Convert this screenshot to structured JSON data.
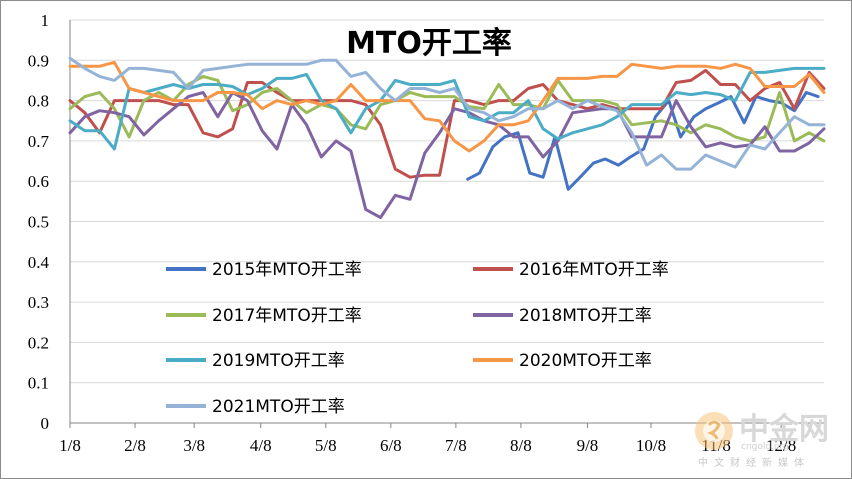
{
  "chart_data": {
    "type": "line",
    "title": "MTO开工率",
    "xlabel": "",
    "ylabel": "",
    "ylim": [
      0,
      1
    ],
    "y_ticks": [
      0,
      0.1,
      0.2,
      0.3,
      0.4,
      0.5,
      0.6,
      0.7,
      0.8,
      0.9,
      1
    ],
    "y_tick_labels": [
      "0",
      "0.1",
      "0.2",
      "0.3",
      "0.4",
      "0.5",
      "0.6",
      "0.7",
      "0.8",
      "0.9",
      "1"
    ],
    "x_domain": [
      0,
      51
    ],
    "x_ticks": [
      0,
      4.4,
      8.4,
      12.9,
      17.3,
      21.7,
      26.1,
      30.5,
      35.0,
      39.3,
      43.7,
      48.1
    ],
    "x_tick_labels": [
      "1/8",
      "2/8",
      "3/8",
      "4/8",
      "5/8",
      "6/8",
      "7/8",
      "8/8",
      "9/8",
      "10/8",
      "11/8",
      "12/8"
    ],
    "grid": "horizontal",
    "legend": "inside-lower-center",
    "series": [
      {
        "name": "2015年MTO开工率",
        "color": "#4472c4",
        "x": [
          26.9,
          27.7,
          28.6,
          29.4,
          30.3,
          31.1,
          32.0,
          32.8,
          33.7,
          34.5,
          35.4,
          36.2,
          37.1,
          37.9,
          38.8,
          39.6,
          40.5,
          41.3,
          42.2,
          43.0,
          43.9,
          44.7,
          45.6,
          46.4,
          47.3,
          48.1,
          49.0,
          49.8,
          50.6
        ],
        "y": [
          0.605,
          0.62,
          0.685,
          0.71,
          0.72,
          0.62,
          0.61,
          0.71,
          0.58,
          0.61,
          0.645,
          0.655,
          0.64,
          0.66,
          0.68,
          0.76,
          0.8,
          0.71,
          0.76,
          0.78,
          0.795,
          0.81,
          0.745,
          0.81,
          0.8,
          0.795,
          0.775,
          0.82,
          0.81
        ]
      },
      {
        "name": "2016年MTO开工率",
        "color": "#c0504d",
        "x": [
          0,
          1,
          2,
          3,
          4,
          5,
          6,
          7,
          8,
          9,
          10,
          11,
          12,
          13,
          14,
          15,
          16,
          17,
          18,
          19,
          20,
          21,
          22,
          23,
          24,
          25,
          26,
          27,
          28,
          29,
          30,
          31,
          32,
          33,
          34,
          35,
          36,
          37,
          38,
          39,
          40,
          41,
          42,
          43,
          44,
          45,
          46,
          47,
          48,
          49,
          50,
          51
        ],
        "y": [
          0.8,
          0.77,
          0.72,
          0.8,
          0.8,
          0.8,
          0.8,
          0.79,
          0.79,
          0.72,
          0.71,
          0.73,
          0.845,
          0.845,
          0.82,
          0.8,
          0.8,
          0.8,
          0.8,
          0.8,
          0.79,
          0.74,
          0.63,
          0.61,
          0.615,
          0.615,
          0.8,
          0.8,
          0.79,
          0.8,
          0.8,
          0.83,
          0.84,
          0.8,
          0.79,
          0.78,
          0.79,
          0.78,
          0.78,
          0.78,
          0.78,
          0.845,
          0.85,
          0.875,
          0.84,
          0.84,
          0.8,
          0.83,
          0.845,
          0.78,
          0.87,
          0.83
        ]
      },
      {
        "name": "2017年MTO开工率",
        "color": "#9bbb59",
        "x": [
          0,
          1,
          2,
          3,
          4,
          5,
          6,
          7,
          8,
          9,
          10,
          11,
          12,
          13,
          14,
          15,
          16,
          17,
          18,
          19,
          20,
          21,
          22,
          23,
          24,
          25,
          26,
          27,
          28,
          29,
          30,
          31,
          32,
          33,
          34,
          35,
          36,
          37,
          38,
          39,
          40,
          41,
          42,
          43,
          44,
          45,
          46,
          47,
          48,
          49,
          50,
          51
        ],
        "y": [
          0.78,
          0.81,
          0.82,
          0.78,
          0.71,
          0.8,
          0.82,
          0.8,
          0.84,
          0.86,
          0.85,
          0.775,
          0.79,
          0.82,
          0.83,
          0.8,
          0.77,
          0.79,
          0.78,
          0.74,
          0.73,
          0.79,
          0.8,
          0.82,
          0.81,
          0.81,
          0.81,
          0.785,
          0.78,
          0.84,
          0.79,
          0.79,
          0.78,
          0.85,
          0.8,
          0.8,
          0.8,
          0.79,
          0.74,
          0.745,
          0.75,
          0.74,
          0.72,
          0.74,
          0.73,
          0.71,
          0.7,
          0.71,
          0.82,
          0.7,
          0.72,
          0.7
        ]
      },
      {
        "name": "2018MTO开工率",
        "color": "#8064a2",
        "x": [
          0,
          1,
          2,
          3,
          4,
          5,
          6,
          7,
          8,
          9,
          10,
          11,
          12,
          13,
          14,
          15,
          16,
          17,
          18,
          19,
          20,
          21,
          22,
          23,
          24,
          25,
          26,
          27,
          28,
          29,
          30,
          31,
          32,
          33,
          34,
          35,
          36,
          37,
          38,
          39,
          40,
          41,
          42,
          43,
          44,
          45,
          46,
          47,
          48,
          49,
          50,
          51
        ],
        "y": [
          0.72,
          0.76,
          0.775,
          0.77,
          0.76,
          0.715,
          0.75,
          0.78,
          0.81,
          0.82,
          0.76,
          0.82,
          0.8,
          0.725,
          0.68,
          0.79,
          0.74,
          0.66,
          0.7,
          0.675,
          0.53,
          0.51,
          0.565,
          0.555,
          0.67,
          0.72,
          0.78,
          0.77,
          0.75,
          0.74,
          0.71,
          0.71,
          0.66,
          0.7,
          0.77,
          0.775,
          0.78,
          0.78,
          0.71,
          0.71,
          0.71,
          0.8,
          0.735,
          0.685,
          0.695,
          0.685,
          0.69,
          0.735,
          0.675,
          0.675,
          0.695,
          0.73
        ]
      },
      {
        "name": "2019MTO开工率",
        "color": "#4bacc6",
        "x": [
          0,
          1,
          2,
          3,
          4,
          5,
          6,
          7,
          8,
          9,
          10,
          11,
          12,
          13,
          14,
          15,
          16,
          17,
          18,
          19,
          20,
          21,
          22,
          23,
          24,
          25,
          26,
          27,
          28,
          29,
          30,
          31,
          32,
          33,
          34,
          35,
          36,
          37,
          38,
          39,
          40,
          41,
          42,
          43,
          44,
          45,
          46,
          47,
          48,
          49,
          50,
          51
        ],
        "y": [
          0.75,
          0.725,
          0.725,
          0.68,
          0.83,
          0.82,
          0.83,
          0.84,
          0.83,
          0.84,
          0.84,
          0.835,
          0.815,
          0.83,
          0.855,
          0.855,
          0.865,
          0.8,
          0.78,
          0.72,
          0.78,
          0.8,
          0.85,
          0.84,
          0.84,
          0.84,
          0.85,
          0.76,
          0.75,
          0.77,
          0.77,
          0.8,
          0.73,
          0.705,
          0.72,
          0.73,
          0.74,
          0.76,
          0.79,
          0.79,
          0.79,
          0.82,
          0.815,
          0.82,
          0.815,
          0.8,
          0.87,
          0.87,
          0.875,
          0.88,
          0.88,
          0.88
        ]
      },
      {
        "name": "2020MTO开工率",
        "color": "#f79646",
        "x": [
          0,
          1,
          2,
          3,
          4,
          5,
          6,
          7,
          8,
          9,
          10,
          11,
          12,
          13,
          14,
          15,
          16,
          17,
          18,
          19,
          20,
          21,
          22,
          23,
          24,
          25,
          26,
          27,
          28,
          29,
          30,
          31,
          32,
          33,
          34,
          35,
          36,
          37,
          38,
          39,
          40,
          41,
          42,
          43,
          44,
          45,
          46,
          47,
          48,
          49,
          50,
          51
        ],
        "y": [
          0.885,
          0.885,
          0.885,
          0.895,
          0.83,
          0.82,
          0.81,
          0.8,
          0.8,
          0.8,
          0.82,
          0.82,
          0.815,
          0.78,
          0.8,
          0.79,
          0.8,
          0.79,
          0.8,
          0.84,
          0.8,
          0.8,
          0.8,
          0.8,
          0.755,
          0.75,
          0.7,
          0.675,
          0.7,
          0.74,
          0.74,
          0.75,
          0.8,
          0.855,
          0.855,
          0.855,
          0.86,
          0.86,
          0.89,
          0.885,
          0.88,
          0.885,
          0.885,
          0.885,
          0.88,
          0.89,
          0.88,
          0.835,
          0.835,
          0.835,
          0.865,
          0.82
        ]
      },
      {
        "name": "2021MTO开工率",
        "color": "#95b3d7",
        "x": [
          0,
          1,
          2,
          3,
          4,
          5,
          6,
          7,
          8,
          9,
          10,
          11,
          12,
          13,
          14,
          15,
          16,
          17,
          18,
          19,
          20,
          21,
          22,
          23,
          24,
          25,
          26,
          27,
          28,
          29,
          30,
          31,
          32,
          33,
          34,
          35,
          36,
          37,
          38,
          39,
          40,
          41,
          42,
          43,
          44,
          45,
          46,
          47,
          48,
          49,
          50,
          51
        ],
        "y": [
          0.905,
          0.88,
          0.86,
          0.85,
          0.88,
          0.88,
          0.875,
          0.87,
          0.83,
          0.875,
          0.88,
          0.885,
          0.89,
          0.89,
          0.89,
          0.89,
          0.89,
          0.9,
          0.9,
          0.86,
          0.87,
          0.83,
          0.8,
          0.83,
          0.83,
          0.82,
          0.83,
          0.78,
          0.77,
          0.75,
          0.76,
          0.78,
          0.78,
          0.8,
          0.78,
          0.8,
          0.785,
          0.775,
          0.72,
          0.64,
          0.665,
          0.63,
          0.63,
          0.665,
          0.65,
          0.635,
          0.69,
          0.68,
          0.72,
          0.76,
          0.74,
          0.74
        ]
      }
    ]
  },
  "watermark": {
    "brand": "中金网",
    "subtitle": "中文财经新媒体",
    "site": "cngold.org",
    "logo_color": "#e6a23c"
  }
}
